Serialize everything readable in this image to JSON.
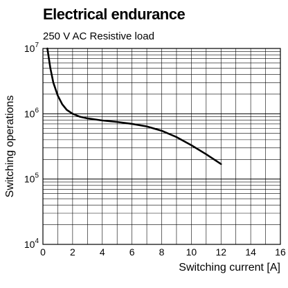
{
  "chart_data": {
    "type": "line",
    "title": "Electrical endurance",
    "subtitle": "250 V AC Resistive load",
    "xlabel": "Switching current [A]",
    "ylabel": "Switching operations",
    "x_scale": "linear",
    "y_scale": "log",
    "xlim": [
      0,
      16
    ],
    "ylim": [
      10000,
      10000000
    ],
    "x_ticks": [
      0,
      2,
      4,
      6,
      8,
      10,
      12,
      14,
      16
    ],
    "y_ticks": [
      {
        "base": "10",
        "exp": "4",
        "value": 10000
      },
      {
        "base": "10",
        "exp": "5",
        "value": 100000
      },
      {
        "base": "10",
        "exp": "6",
        "value": 1000000
      },
      {
        "base": "10",
        "exp": "7",
        "value": 10000000
      }
    ],
    "grid": true,
    "series": [
      {
        "x": [
          0.3,
          0.5,
          0.7,
          1.0,
          1.3,
          1.6,
          2.0,
          2.5,
          3.0,
          4.0,
          5.0,
          6.0,
          7.0,
          8.0,
          9.0,
          10.0,
          11.0,
          12.0
        ],
        "y": [
          10000000,
          5000000,
          3000000,
          1900000,
          1400000,
          1150000,
          1000000,
          900000,
          850000,
          790000,
          750000,
          700000,
          640000,
          550000,
          440000,
          330000,
          240000,
          170000
        ]
      }
    ]
  }
}
